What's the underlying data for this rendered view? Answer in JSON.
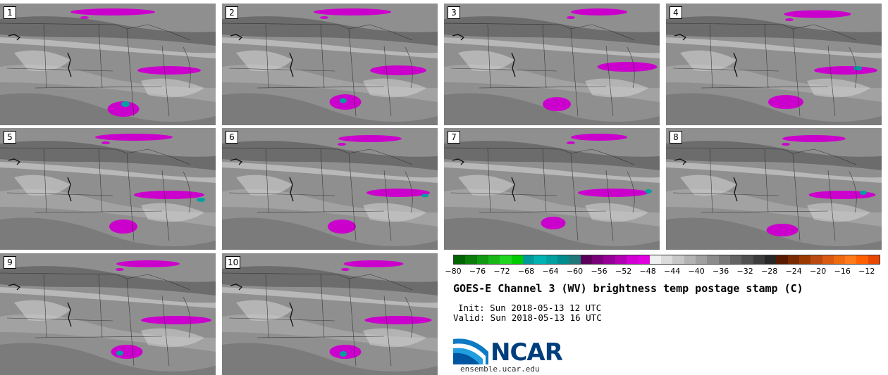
{
  "panels": [
    {
      "label": "1"
    },
    {
      "label": "2"
    },
    {
      "label": "3"
    },
    {
      "label": "4"
    },
    {
      "label": "5"
    },
    {
      "label": "6"
    },
    {
      "label": "7"
    },
    {
      "label": "8"
    },
    {
      "label": "9"
    },
    {
      "label": "10"
    }
  ],
  "colorbar": {
    "ticks": [
      "−80",
      "−76",
      "−72",
      "−68",
      "−64",
      "−60",
      "−56",
      "−52",
      "−48",
      "−44",
      "−40",
      "−36",
      "−32",
      "−28",
      "−24",
      "−20",
      "−16",
      "−12"
    ],
    "colors": [
      "#006400",
      "#0a7d0a",
      "#129a12",
      "#18b818",
      "#1fd61f",
      "#00cc00",
      "#009a9a",
      "#00b3b3",
      "#00a0a0",
      "#008c8c",
      "#1f7878",
      "#5a005a",
      "#780078",
      "#960096",
      "#b400b4",
      "#d200d2",
      "#e000e0",
      "#f0f0f0",
      "#dcdcdc",
      "#c8c8c8",
      "#b4b4b4",
      "#a0a0a0",
      "#8c8c8c",
      "#787878",
      "#646464",
      "#505050",
      "#3c3c3c",
      "#282828",
      "#5a1a00",
      "#7a2a00",
      "#9a3a00",
      "#ba4a10",
      "#da5a10",
      "#f06a10",
      "#ff7a1a",
      "#ff6000",
      "#e84800"
    ]
  },
  "title": "GOES-E Channel 3 (WV) brightness temp postage stamp (C)",
  "init": "Init: Sun 2018-05-13 12 UTC",
  "valid": "Valid: Sun 2018-05-13 16 UTC",
  "logo": {
    "name": "NCAR",
    "url": "ensemble.ucar.edu"
  },
  "colors": {
    "magenta": "#cc00cc",
    "teal": "#00a0a0",
    "gray_base": "#8c8c8c"
  }
}
